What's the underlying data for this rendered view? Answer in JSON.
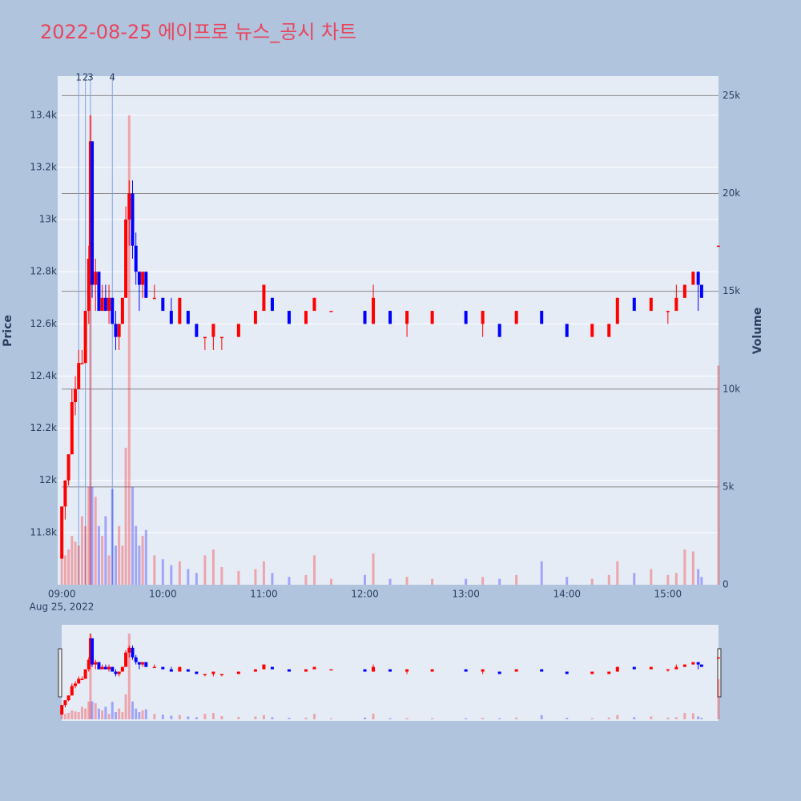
{
  "chart_data": {
    "type": "candlestick",
    "title": "2022-08-25 에이프로 뉴스_공시 차트",
    "x": [
      "09:00",
      "09:02",
      "09:04",
      "09:06",
      "09:08",
      "09:10",
      "09:12",
      "09:14",
      "09:16",
      "09:17",
      "09:18",
      "09:20",
      "09:22",
      "09:24",
      "09:26",
      "09:28",
      "09:30",
      "09:32",
      "09:34",
      "09:36",
      "09:38",
      "09:40",
      "09:42",
      "09:44",
      "09:46",
      "09:48",
      "09:50",
      "09:55",
      "10:00",
      "10:05",
      "10:10",
      "10:15",
      "10:20",
      "10:25",
      "10:30",
      "10:35",
      "10:45",
      "10:55",
      "11:00",
      "11:05",
      "11:15",
      "11:25",
      "11:30",
      "11:40",
      "12:00",
      "12:05",
      "12:15",
      "12:25",
      "12:40",
      "13:00",
      "13:10",
      "13:20",
      "13:30",
      "13:45",
      "14:00",
      "14:15",
      "14:25",
      "14:30",
      "14:40",
      "14:50",
      "15:00",
      "15:05",
      "15:10",
      "15:15",
      "15:18",
      "15:20",
      "15:30"
    ],
    "open": [
      11700,
      11900,
      12000,
      12100,
      12300,
      12350,
      12450,
      12450,
      12650,
      12850,
      13300,
      12750,
      12800,
      12650,
      12700,
      12650,
      12700,
      12600,
      12550,
      12600,
      12700,
      13000,
      13100,
      12900,
      12800,
      12750,
      12800,
      12700,
      12700,
      12650,
      12600,
      12650,
      12600,
      12550,
      12550,
      12550,
      12550,
      12600,
      12650,
      12700,
      12650,
      12600,
      12650,
      12650,
      12650,
      12600,
      12650,
      12600,
      12600,
      12650,
      12600,
      12600,
      12600,
      12650,
      12600,
      12550,
      12550,
      12600,
      12700,
      12650,
      12650,
      12650,
      12700,
      12750,
      12800,
      12750,
      12900
    ],
    "high": [
      11900,
      12000,
      12100,
      12350,
      12400,
      12500,
      12500,
      12650,
      12900,
      13400,
      13300,
      12850,
      12800,
      12750,
      12750,
      12750,
      12700,
      12650,
      12600,
      12700,
      13050,
      13150,
      13150,
      12950,
      12800,
      12800,
      12800,
      12750,
      12700,
      12700,
      12700,
      12650,
      12600,
      12550,
      12600,
      12550,
      12600,
      12650,
      12750,
      12700,
      12650,
      12650,
      12700,
      12650,
      12650,
      12750,
      12650,
      12650,
      12650,
      12650,
      12650,
      12600,
      12650,
      12650,
      12600,
      12600,
      12600,
      12700,
      12700,
      12700,
      12650,
      12750,
      12750,
      12800,
      12800,
      12750,
      12900
    ],
    "low": [
      11700,
      11850,
      11980,
      12100,
      12250,
      12350,
      12450,
      12450,
      12600,
      12850,
      12700,
      12650,
      12650,
      12650,
      12650,
      12600,
      12600,
      12500,
      12500,
      12600,
      12700,
      12900,
      12850,
      12750,
      12650,
      12700,
      12700,
      12700,
      12650,
      12600,
      12600,
      12600,
      12550,
      12500,
      12500,
      12500,
      12550,
      12600,
      12650,
      12650,
      12600,
      12600,
      12650,
      12650,
      12600,
      12600,
      12600,
      12550,
      12600,
      12600,
      12550,
      12550,
      12600,
      12600,
      12550,
      12550,
      12550,
      12600,
      12650,
      12650,
      12600,
      12650,
      12700,
      12750,
      12650,
      12700,
      12900
    ],
    "close": [
      11900,
      12000,
      12100,
      12300,
      12350,
      12450,
      12450,
      12650,
      12850,
      13300,
      12750,
      12800,
      12650,
      12700,
      12650,
      12700,
      12600,
      12550,
      12600,
      12700,
      13000,
      13100,
      12900,
      12800,
      12750,
      12800,
      12700,
      12700,
      12650,
      12600,
      12700,
      12600,
      12550,
      12550,
      12600,
      12550,
      12600,
      12650,
      12750,
      12650,
      12600,
      12650,
      12700,
      12650,
      12600,
      12700,
      12600,
      12650,
      12650,
      12600,
      12650,
      12550,
      12650,
      12600,
      12550,
      12600,
      12600,
      12700,
      12650,
      12700,
      12650,
      12700,
      12750,
      12800,
      12750,
      12700,
      12900
    ],
    "volume": [
      2000,
      1500,
      1800,
      2500,
      2200,
      2000,
      3500,
      3000,
      5000,
      24000,
      5000,
      4500,
      3000,
      2500,
      3500,
      1500,
      4900,
      2000,
      3000,
      2000,
      7000,
      24000,
      5000,
      3000,
      2000,
      2500,
      2800,
      1500,
      1300,
      1000,
      1200,
      800,
      600,
      1500,
      1800,
      900,
      700,
      800,
      1200,
      600,
      400,
      500,
      1500,
      300,
      500,
      1600,
      300,
      400,
      300,
      300,
      400,
      300,
      500,
      1200,
      400,
      300,
      500,
      1200,
      600,
      800,
      500,
      600,
      1800,
      1700,
      800,
      400,
      11200
    ],
    "up_color": "#ff0000",
    "down_color": "#0000ff",
    "xlim": [
      "08:58",
      "15:31"
    ],
    "xticks": [
      "09:00",
      "10:00",
      "11:00",
      "12:00",
      "13:00",
      "14:00",
      "15:00"
    ],
    "x_sublabel": "Aug 25, 2022",
    "ylim": [
      11600,
      13550
    ],
    "yticks": [
      {
        "value": 11800,
        "label": "11.8k"
      },
      {
        "value": 12000,
        "label": "12k"
      },
      {
        "value": 12200,
        "label": "12.2k"
      },
      {
        "value": 12400,
        "label": "12.4k"
      },
      {
        "value": 12600,
        "label": "12.6k"
      },
      {
        "value": 12800,
        "label": "12.8k"
      },
      {
        "value": 13000,
        "label": "13k"
      },
      {
        "value": 13200,
        "label": "13.2k"
      },
      {
        "value": 13400,
        "label": "13.4k"
      }
    ],
    "y2lim": [
      0,
      26000
    ],
    "y2ticks": [
      0,
      {
        "value": 5000,
        "label": "5k"
      },
      {
        "value": 10000,
        "label": "10k"
      },
      {
        "value": 15000,
        "label": "15k"
      },
      {
        "value": 20000,
        "label": "20k"
      },
      {
        "value": 25000,
        "label": "25k"
      }
    ],
    "ylabel": "Price",
    "y2label": "Volume",
    "annotations": [
      {
        "x": "09:10",
        "label": "1"
      },
      {
        "x": "09:14",
        "label": "2"
      },
      {
        "x": "09:17",
        "label": "3"
      },
      {
        "x": "09:30",
        "label": "4"
      }
    ],
    "grid": true,
    "rangeslider": true
  }
}
